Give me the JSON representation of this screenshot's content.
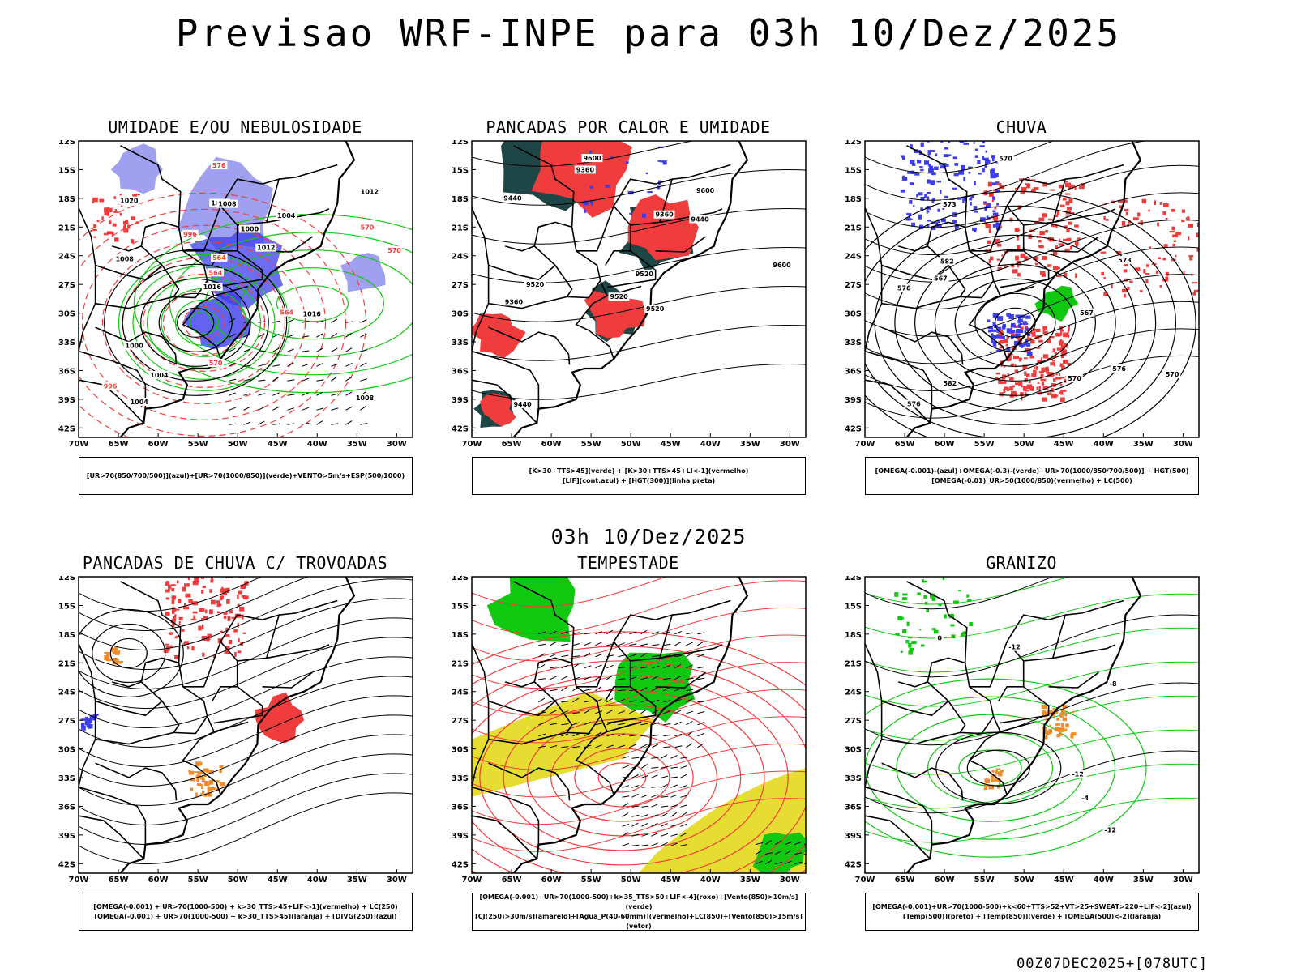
{
  "header": {
    "title": "Previsao WRF-INPE  para 03h 10/Dez/2025"
  },
  "mid_title": "03h 10/Dez/2025",
  "footer": "00Z07DEC2025+[078UTC]",
  "colors": {
    "red": "#f03c3c",
    "green": "#10c810",
    "blue": "#3c3cf0",
    "lightblue": "#a0a0f0",
    "darkteal": "#1e4646",
    "orange": "#f08c28",
    "yellow": "#e6dc32",
    "black": "#000000"
  },
  "axes": {
    "lon_ticks": [
      "70W",
      "65W",
      "60W",
      "55W",
      "50W",
      "45W",
      "40W",
      "35W",
      "30W"
    ],
    "lat_ticks": [
      "12S",
      "15S",
      "18S",
      "21S",
      "24S",
      "27S",
      "30S",
      "33S",
      "36S",
      "39S",
      "42S"
    ]
  },
  "chart_data": [
    {
      "type": "heatmap",
      "id": "p1",
      "title": "UMIDADE E/OU NEBULOSIDADE",
      "legend_lines": [
        "[UR>70(850/700/500)](azul)+[UR>70(1000/850)](verde)+VENTO>5m/s+ESP(500/1000)"
      ],
      "contour_labels": [
        "1008",
        "1008",
        "1012",
        "1016",
        "1004",
        "1004",
        "1004",
        "1000",
        "1000",
        "996",
        "996",
        "1004",
        "1008",
        "1012",
        "1016",
        "1020",
        "576",
        "570",
        "564",
        "570",
        "564",
        "570",
        "564"
      ],
      "xlim": [
        -70,
        -30
      ],
      "ylim": [
        -42,
        -11
      ]
    },
    {
      "type": "heatmap",
      "id": "p2",
      "title": "PANCADAS POR CALOR E UMIDADE",
      "legend_lines": [
        "[K>30+TTS>45](verde) + [K>30+TTS>45+LI<-1](vermelho)",
        "[LIF](cont.azul) + [HGT(300)](linha preta)"
      ],
      "contour_labels": [
        "9600",
        "9600",
        "9600",
        "9520",
        "9520",
        "9520",
        "9440",
        "9440",
        "9360",
        "9360",
        "9520",
        "9440",
        "9360"
      ],
      "xlim": [
        -70,
        -30
      ],
      "ylim": [
        -42,
        -11
      ]
    },
    {
      "type": "heatmap",
      "id": "p3",
      "title": "CHUVA",
      "legend_lines": [
        "[OMEGA(-0.001)-(azul)+OMEGA(-0.3)-(verde)+UR>70(1000/850/700/500)] + HGT(500)",
        "[OMEGA(-0.01)_UR>50(1000/850)(vermelho) + LC(500)"
      ],
      "contour_labels": [
        "582",
        "582",
        "576",
        "576",
        "573",
        "570",
        "567",
        "576",
        "573",
        "570",
        "567",
        "570"
      ],
      "xlim": [
        -70,
        -30
      ],
      "ylim": [
        -42,
        -11
      ]
    },
    {
      "type": "heatmap",
      "id": "p4",
      "title": "PANCADAS DE CHUVA C/ TROVOADAS",
      "legend_lines": [
        "[OMEGA(-0.001) + UR>70(1000-500) + k>30_TTS>45+LIF<-1](vermelho) + LC(250)",
        "[OMEGA(-0.001) + UR>70(1000-500) + k>30_TTS>45](laranja) + [DIVG(250)](azul)"
      ],
      "contour_labels": [],
      "xlim": [
        -70,
        -30
      ],
      "ylim": [
        -42,
        -11
      ]
    },
    {
      "type": "heatmap",
      "id": "p5",
      "title": "TEMPESTADE",
      "legend_lines": [
        "[OMEGA(-0.001)+UR>70(1000-500)+k>35_TTS>50+LIF<-4](roxo)+[Vento(850)>10m/s](verde)",
        "[CJ(250)>30m/s](amarelo)+[Agua_P(40-60mm)](vermelho)+LC(850)+[Vento(850)>15m/s](vetor)"
      ],
      "contour_labels": [],
      "xlim": [
        -70,
        -30
      ],
      "ylim": [
        -42,
        -11
      ]
    },
    {
      "type": "heatmap",
      "id": "p6",
      "title": "GRANIZO",
      "legend_lines": [
        "[OMEGA(-0.001)+UR>70(1000-500)+k<60+TTS>52+VT>25+SWEAT>220+LIF<-2](azul)",
        "[Temp(500)](preto) + [Temp(850)](verde) + [OMEGA(500)<-2](laranja)"
      ],
      "contour_labels": [
        "-12",
        "-12",
        "-8",
        "-4",
        "0",
        "-12"
      ],
      "xlim": [
        -70,
        -30
      ],
      "ylim": [
        -42,
        -11
      ]
    }
  ]
}
